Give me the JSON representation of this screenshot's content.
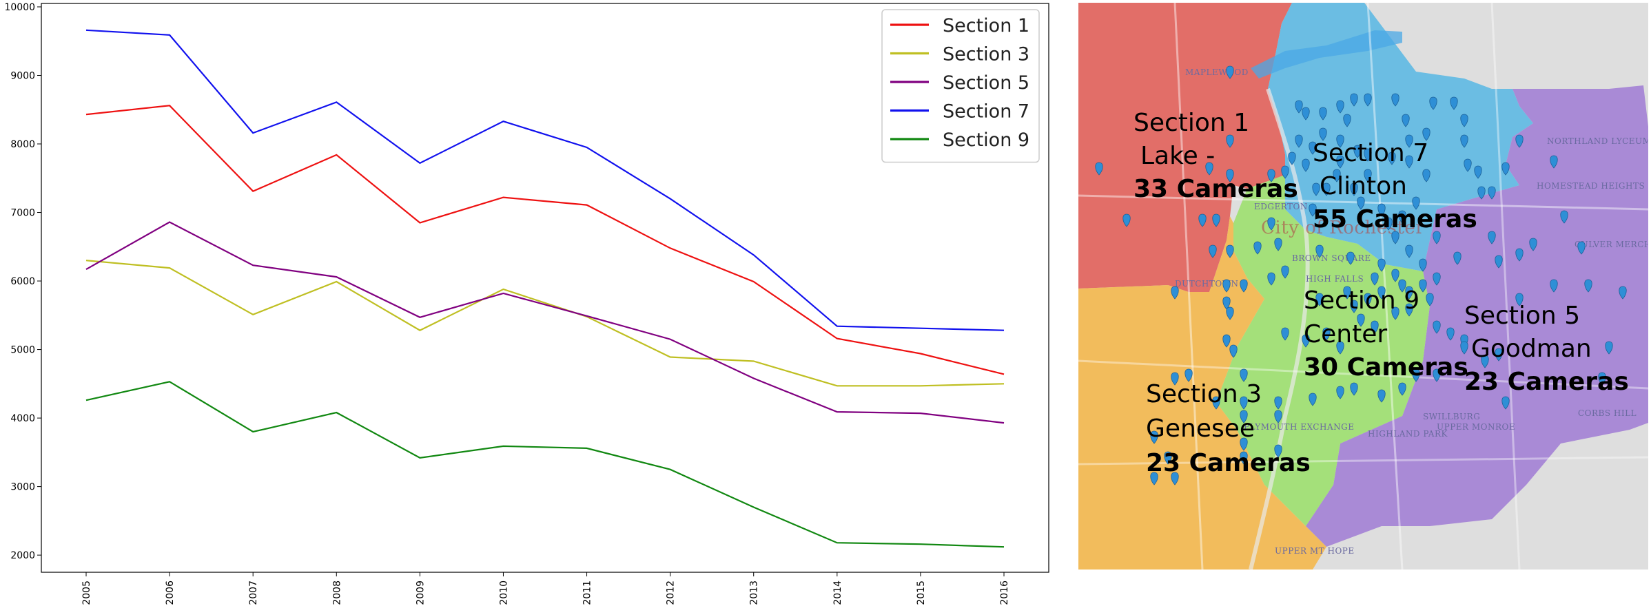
{
  "chart_data": {
    "type": "line",
    "categories": [
      "2005",
      "2006",
      "2007",
      "2008",
      "2009",
      "2010",
      "2011",
      "2012",
      "2013",
      "2014",
      "2015",
      "2016"
    ],
    "ylim": [
      1750,
      10050
    ],
    "yticks": [
      2000,
      3000,
      4000,
      5000,
      6000,
      7000,
      8000,
      9000,
      10000
    ],
    "legend_position": "top-right",
    "grid": false,
    "series": [
      {
        "name": "Section 1",
        "color": "#ee1111",
        "values": [
          8430,
          8560,
          7310,
          7840,
          6850,
          7220,
          7110,
          6480,
          5990,
          5160,
          4940,
          4640
        ]
      },
      {
        "name": "Section 3",
        "color": "#bfbf22",
        "values": [
          6300,
          6190,
          5510,
          5990,
          5280,
          5880,
          5480,
          4890,
          4830,
          4470,
          4470,
          4500
        ]
      },
      {
        "name": "Section 5",
        "color": "#800080",
        "values": [
          6170,
          6860,
          6230,
          6060,
          5470,
          5820,
          5490,
          5150,
          4580,
          4090,
          4070,
          3930
        ]
      },
      {
        "name": "Section 7",
        "color": "#1111ee",
        "values": [
          9660,
          9590,
          8160,
          8610,
          7720,
          8330,
          7950,
          7200,
          6380,
          5340,
          5310,
          5280
        ]
      },
      {
        "name": "Section 9",
        "color": "#118811",
        "values": [
          4260,
          4530,
          3800,
          4080,
          3420,
          3590,
          3560,
          3250,
          2700,
          2180,
          2160,
          2120
        ]
      }
    ]
  },
  "map": {
    "labels": [
      {
        "id": "section-1",
        "lines": [
          "Section 1",
          "Lake -"
        ],
        "cameras": "33 Cameras"
      },
      {
        "id": "section-7",
        "lines": [
          "Section 7",
          "Clinton"
        ],
        "cameras": "55 Cameras"
      },
      {
        "id": "section-9",
        "lines": [
          "Section 9",
          "Center"
        ],
        "cameras": "30 Cameras"
      },
      {
        "id": "section-5",
        "lines": [
          "Section 5",
          "Goodman"
        ],
        "cameras": "23 Cameras"
      },
      {
        "id": "section-3",
        "lines": [
          "Section 3",
          "Genesee"
        ],
        "cameras": "23 Cameras"
      }
    ],
    "places": [
      "MAPLEWOOD",
      "EDGERTON",
      "DUTCHTOWN",
      "BROWN SQUARE",
      "HIGH FALLS",
      "NORTHLAND LYCEUM",
      "HOMESTEAD HEIGHTS",
      "CULVER MERCHANTS",
      "HIGHLAND PARK",
      "UPPER MONROE",
      "CORBS HILL",
      "UPPER MT HOPE",
      "PLYMOUTH EXCHANGE",
      "SWILLBURG",
      "City of Rochester"
    ],
    "colors": {
      "section-1": "#e26e68",
      "section-3": "#f2bc5c",
      "section-5": "#a98ad6",
      "section-7": "#6bbde3",
      "section-9": "#a4e07a",
      "camera": "#2e8fd6"
    }
  }
}
